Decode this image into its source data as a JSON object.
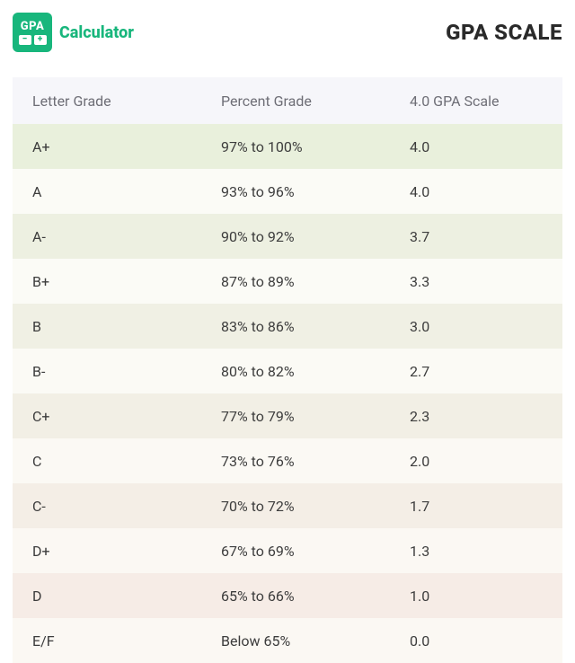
{
  "logo": {
    "badge_text": "GPA",
    "brand_text": "Calculator"
  },
  "title": "GPA SCALE",
  "columns": [
    "Letter Grade",
    "Percent Grade",
    "4.0 GPA Scale"
  ],
  "row_colors": {
    "alt_a": "#eef2e5",
    "alt_b": "#fbfbf7",
    "header_bg": "#f6f6fa"
  },
  "rows": [
    {
      "letter": "A+",
      "percent": "97% to 100%",
      "gpa": "4.0",
      "bg": "#e9f0dc"
    },
    {
      "letter": "A",
      "percent": "93% to 96%",
      "gpa": "4.0",
      "bg": "#fbfbf6"
    },
    {
      "letter": "A-",
      "percent": "90% to 92%",
      "gpa": "3.7",
      "bg": "#edf0e1"
    },
    {
      "letter": "B+",
      "percent": "87% to 89%",
      "gpa": "3.3",
      "bg": "#fbfbf6"
    },
    {
      "letter": "B",
      "percent": "83% to 86%",
      "gpa": "3.0",
      "bg": "#f0f0e4"
    },
    {
      "letter": "B-",
      "percent": "80% to 82%",
      "gpa": "2.7",
      "bg": "#fbfaf5"
    },
    {
      "letter": "C+",
      "percent": "77% to 79%",
      "gpa": "2.3",
      "bg": "#f2efe5"
    },
    {
      "letter": "C",
      "percent": "73% to 76%",
      "gpa": "2.0",
      "bg": "#fbf9f4"
    },
    {
      "letter": "C-",
      "percent": "70% to 72%",
      "gpa": "1.7",
      "bg": "#f4eee6"
    },
    {
      "letter": "D+",
      "percent": "67% to 69%",
      "gpa": "1.3",
      "bg": "#fbf8f3"
    },
    {
      "letter": "D",
      "percent": "65% to 66%",
      "gpa": "1.0",
      "bg": "#f6ece6"
    },
    {
      "letter": "E/F",
      "percent": "Below 65%",
      "gpa": "0.0",
      "bg": "#fbf8f3"
    }
  ]
}
